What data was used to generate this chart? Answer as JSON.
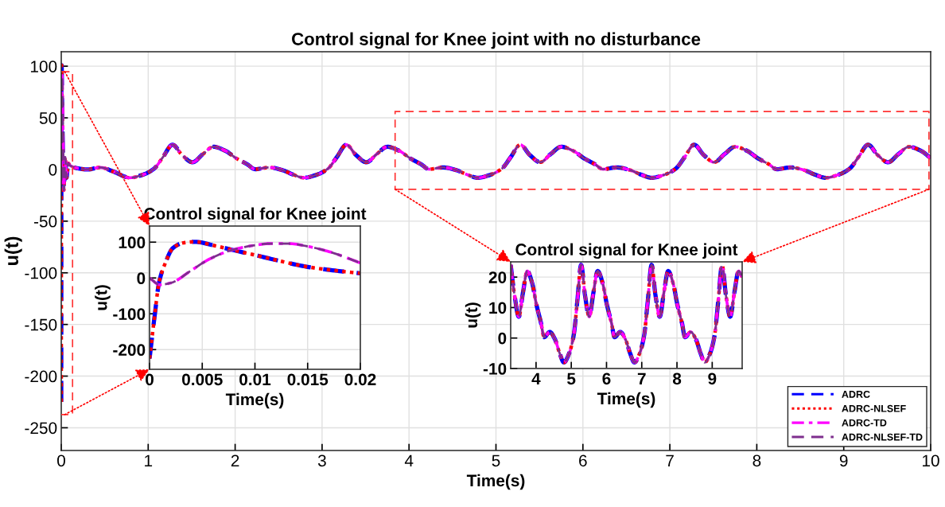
{
  "chart_data": [
    {
      "type": "line",
      "title": "Control signal for Knee joint with no disturbance",
      "xlabel": "Time(s)",
      "ylabel": "u(t)",
      "xlim": [
        0,
        10
      ],
      "ylim": [
        -272,
        114
      ],
      "xticks": [
        0,
        1,
        2,
        3,
        4,
        5,
        6,
        7,
        8,
        9,
        10
      ],
      "yticks": [
        -250,
        -200,
        -150,
        -100,
        -50,
        0,
        50,
        100
      ],
      "grid": true,
      "legend": "bottom right",
      "x": [
        0,
        0.0022,
        0.0043,
        0.01,
        0.02,
        0.03,
        0.045,
        0.06,
        0.08,
        0.1,
        0.2,
        0.3,
        0.45,
        0.6,
        0.79,
        0.94,
        1.07,
        1.17,
        1.28,
        1.39,
        1.51,
        1.63,
        1.75,
        1.89,
        2.01,
        2.14,
        2.23,
        2.39,
        2.54,
        2.67,
        2.79,
        2.94,
        3.07,
        3.17,
        3.28,
        3.39,
        3.51,
        3.63,
        3.75,
        3.89,
        4.01,
        4.14,
        4.23,
        4.39,
        4.54,
        4.67,
        4.79,
        4.94,
        5.07,
        5.17,
        5.28,
        5.39,
        5.51,
        5.63,
        5.75,
        5.89,
        6.01,
        6.14,
        6.23,
        6.39,
        6.54,
        6.67,
        6.79,
        6.94,
        7.07,
        7.17,
        7.28,
        7.39,
        7.51,
        7.63,
        7.75,
        7.89,
        8.01,
        8.14,
        8.23,
        8.39,
        8.54,
        8.67,
        8.79,
        8.94,
        9.07,
        9.17,
        9.28,
        9.39,
        9.51,
        9.63,
        9.75,
        9.89,
        10
      ],
      "series": [
        {
          "name": "ADRC",
          "color": "#0000ff",
          "line_style": "dashed",
          "values": [
            -225,
            83,
            101,
            64,
            13,
            -20,
            12,
            -8,
            6,
            4,
            1,
            0,
            2,
            -2,
            -8,
            -5,
            1,
            12,
            24,
            14,
            7,
            15,
            22,
            18,
            11,
            5,
            0.3,
            2,
            -0.5,
            -5,
            -8,
            -5,
            1,
            12,
            24,
            14,
            7,
            15,
            22,
            18,
            11,
            5,
            0.3,
            2,
            -0.5,
            -5,
            -8,
            -5,
            1,
            12,
            24,
            14,
            7,
            15,
            22,
            18,
            11,
            5,
            0.3,
            2,
            -0.5,
            -5,
            -8,
            -5,
            1,
            12,
            24,
            14,
            7,
            15,
            22,
            18,
            11,
            5,
            0.3,
            2,
            -0.5,
            -5,
            -8,
            -5,
            1,
            12,
            24,
            14,
            7,
            15,
            22,
            18,
            11
          ]
        },
        {
          "name": "ADRC-NLSEF",
          "color": "#ff0000",
          "line_style": "dotted",
          "values": [
            -225,
            83,
            101,
            64,
            13,
            -20,
            12,
            -8,
            6,
            4,
            1,
            0,
            2,
            -2,
            -8,
            -5,
            1,
            12,
            24,
            14,
            7,
            15,
            22,
            18,
            11,
            5,
            0.3,
            2,
            -0.5,
            -5,
            -8,
            -5,
            1,
            12,
            24,
            14,
            7,
            15,
            22,
            18,
            11,
            5,
            0.3,
            2,
            -0.5,
            -5,
            -8,
            -5,
            1,
            12,
            24,
            14,
            7,
            15,
            22,
            18,
            11,
            5,
            0.3,
            2,
            -0.5,
            -5,
            -8,
            -5,
            1,
            12,
            24,
            14,
            7,
            15,
            22,
            18,
            11,
            5,
            0.3,
            2,
            -0.5,
            -5,
            -8,
            -5,
            1,
            12,
            24,
            14,
            7,
            15,
            22,
            18,
            11
          ]
        },
        {
          "name": "ADRC-TD",
          "color": "#ff00ff",
          "line_style": "dashdot",
          "values": [
            0,
            -13,
            27,
            91,
            42,
            -20,
            12,
            -8,
            6,
            4,
            1,
            0,
            2,
            -2,
            -8,
            -5,
            1,
            12,
            24,
            14,
            7,
            15,
            22,
            18,
            11,
            5,
            0.3,
            2,
            -0.5,
            -5,
            -8,
            -5,
            1,
            12,
            24,
            14,
            7,
            15,
            22,
            18,
            11,
            5,
            0.3,
            2,
            -0.5,
            -5,
            -8,
            -5,
            1,
            12,
            24,
            14,
            7,
            15,
            22,
            18,
            11,
            5,
            0.3,
            2,
            -0.5,
            -5,
            -8,
            -5,
            1,
            12,
            24,
            14,
            7,
            15,
            22,
            18,
            11,
            5,
            0.3,
            2,
            -0.5,
            -5,
            -8,
            -5,
            1,
            12,
            24,
            14,
            7,
            15,
            22,
            18,
            11
          ]
        },
        {
          "name": "ADRC-NLSEF-TD",
          "color": "#7e2f8e",
          "line_style": "dashed",
          "values": [
            0,
            -13,
            27,
            91,
            42,
            -20,
            12,
            -8,
            6,
            4,
            1,
            0,
            2,
            -2,
            -8,
            -5,
            1,
            12,
            24,
            14,
            7,
            15,
            22,
            18,
            11,
            5,
            0.3,
            2,
            -0.5,
            -5,
            -8,
            -5,
            1,
            12,
            24,
            14,
            7,
            15,
            22,
            18,
            11,
            5,
            0.3,
            2,
            -0.5,
            -5,
            -8,
            -5,
            1,
            12,
            24,
            14,
            7,
            15,
            22,
            18,
            11,
            5,
            0.3,
            2,
            -0.5,
            -5,
            -8,
            -5,
            1,
            12,
            24,
            14,
            7,
            15,
            22,
            18,
            11,
            5,
            0.3,
            2,
            -0.5,
            -5,
            -8,
            -5,
            1,
            12,
            24,
            14,
            7,
            15,
            22,
            18,
            11
          ]
        }
      ]
    },
    {
      "type": "line",
      "title": "Control signal for Knee joint",
      "xlabel": "Time(s)",
      "ylabel": "u(t)",
      "xlim": [
        0,
        0.02
      ],
      "ylim": [
        -255,
        145
      ],
      "xticks": [
        0,
        0.005,
        0.01,
        0.015,
        0.02
      ],
      "yticks": [
        -200,
        -100,
        0,
        100
      ],
      "grid": true,
      "series": [
        {
          "color": "#0000ff",
          "line_style": "dashed",
          "x": [
            0,
            0.0005,
            0.0009,
            0.0015,
            0.0022,
            0.0032,
            0.0043,
            0.0062,
            0.0082,
            0.01,
            0.012,
            0.015,
            0.0178,
            0.02
          ],
          "values": [
            -225,
            -102,
            -13,
            42,
            83,
            98,
            101,
            90,
            76,
            64,
            50,
            31,
            20,
            13
          ]
        },
        {
          "color": "#ff0000",
          "line_style": "dotted",
          "x": [
            0,
            0.0005,
            0.0009,
            0.0015,
            0.0022,
            0.0032,
            0.0043,
            0.0062,
            0.0082,
            0.01,
            0.012,
            0.015,
            0.0178,
            0.02
          ],
          "values": [
            -225,
            -102,
            -13,
            42,
            83,
            98,
            101,
            90,
            76,
            64,
            50,
            31,
            20,
            13
          ]
        },
        {
          "color": "#ff00ff",
          "line_style": "dashdot",
          "x": [
            0,
            0.001,
            0.0021,
            0.0039,
            0.0057,
            0.0077,
            0.0097,
            0.0115,
            0.0132,
            0.0152,
            0.0172,
            0.02
          ],
          "values": [
            0,
            -19,
            -13,
            20,
            53,
            77,
            90,
            96,
            96,
            87,
            72,
            42
          ]
        },
        {
          "color": "#7e2f8e",
          "line_style": "dashed",
          "x": [
            0,
            0.001,
            0.0021,
            0.0039,
            0.0057,
            0.0077,
            0.0097,
            0.0115,
            0.0132,
            0.0152,
            0.0172,
            0.02
          ],
          "values": [
            0,
            -19,
            -13,
            20,
            53,
            77,
            90,
            96,
            96,
            87,
            72,
            42
          ]
        }
      ]
    },
    {
      "type": "line",
      "title": "Control signal for Knee joint",
      "xlabel": "Time(s)",
      "ylabel": "u(t)",
      "xlim": [
        3.28,
        9.85
      ],
      "ylim": [
        -10,
        25
      ],
      "xticks": [
        4,
        5,
        6,
        7,
        8,
        9
      ],
      "yticks": [
        -10,
        0,
        10,
        20
      ],
      "grid": true,
      "x": [
        3.28,
        3.39,
        3.51,
        3.63,
        3.75,
        3.89,
        4.01,
        4.14,
        4.23,
        4.39,
        4.54,
        4.67,
        4.79,
        4.94,
        5.07,
        5.17,
        5.28,
        5.39,
        5.51,
        5.63,
        5.75,
        5.89,
        6.01,
        6.14,
        6.23,
        6.39,
        6.54,
        6.67,
        6.79,
        6.94,
        7.07,
        7.17,
        7.28,
        7.39,
        7.51,
        7.63,
        7.75,
        7.89,
        8.01,
        8.14,
        8.23,
        8.39,
        8.54,
        8.67,
        8.79,
        8.94,
        9.07,
        9.17,
        9.28,
        9.39,
        9.51,
        9.63,
        9.75,
        9.85
      ],
      "series": [
        {
          "color": "#0000ff",
          "line_style": "dashed",
          "values": [
            24,
            14,
            7,
            15,
            22,
            18,
            11,
            5,
            0.3,
            2,
            -0.5,
            -5,
            -8,
            -5,
            1,
            12,
            24,
            14,
            7,
            15,
            22,
            18,
            11,
            5,
            0.3,
            2,
            -0.5,
            -5,
            -8,
            -5,
            1,
            12,
            24,
            14,
            7,
            15,
            22,
            18,
            11,
            5,
            0.3,
            2,
            -0.5,
            -5,
            -8,
            -5,
            1,
            12,
            24,
            14,
            7,
            15,
            22,
            20
          ]
        },
        {
          "color": "#ff0000",
          "line_style": "dotted",
          "values": [
            24,
            14,
            7,
            15,
            22,
            18,
            11,
            5,
            0.3,
            2,
            -0.5,
            -5,
            -8,
            -5,
            1,
            12,
            24,
            14,
            7,
            15,
            22,
            18,
            11,
            5,
            0.3,
            2,
            -0.5,
            -5,
            -8,
            -5,
            1,
            12,
            24,
            14,
            7,
            15,
            22,
            18,
            11,
            5,
            0.3,
            2,
            -0.5,
            -5,
            -8,
            -5,
            1,
            12,
            24,
            14,
            7,
            15,
            22,
            20
          ]
        },
        {
          "color": "#ff00ff",
          "line_style": "dashdot",
          "values": [
            24,
            14,
            7,
            15,
            22,
            18,
            11,
            5,
            0.3,
            2,
            -0.5,
            -5,
            -8,
            -5,
            1,
            12,
            24,
            14,
            7,
            15,
            22,
            18,
            11,
            5,
            0.3,
            2,
            -0.5,
            -5,
            -8,
            -5,
            1,
            12,
            24,
            14,
            7,
            15,
            22,
            18,
            11,
            5,
            0.3,
            2,
            -0.5,
            -5,
            -8,
            -5,
            1,
            12,
            24,
            14,
            7,
            15,
            22,
            20
          ]
        },
        {
          "color": "#7e2f8e",
          "line_style": "dashed",
          "values": [
            24,
            14,
            7,
            15,
            22,
            18,
            11,
            5,
            0.3,
            2,
            -0.5,
            -5,
            -8,
            -5,
            1,
            12,
            24,
            14,
            7,
            15,
            22,
            18,
            11,
            5,
            0.3,
            2,
            -0.5,
            -5,
            -8,
            -5,
            1,
            12,
            24,
            14,
            7,
            15,
            22,
            18,
            11,
            5,
            0.3,
            2,
            -0.5,
            -5,
            -8,
            -5,
            1,
            12,
            24,
            14,
            7,
            15,
            22,
            20
          ]
        }
      ]
    }
  ]
}
